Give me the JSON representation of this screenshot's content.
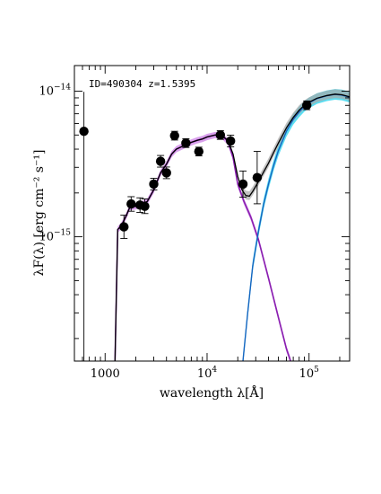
{
  "chart_data": {
    "type": "scatter",
    "annotation": "ID=490304  z=1.5395",
    "xlabel": "wavelength λ[Å]",
    "ylabel": "λF(λ) [erg cm⁻² s⁻¹]",
    "xscale": "log",
    "yscale": "log",
    "xlim": [
      500,
      250000
    ],
    "ylim": [
      1.4e-16,
      1.5e-14
    ],
    "x_ticks": [
      {
        "value": 1000,
        "label": "1000"
      },
      {
        "value": 10000,
        "base": "10",
        "exp": "4"
      },
      {
        "value": 100000,
        "base": "10",
        "exp": "5"
      }
    ],
    "y_ticks": [
      {
        "value": 1e-15,
        "base": "10",
        "exp": "−15"
      },
      {
        "value": 1e-14,
        "base": "10",
        "exp": "−14"
      }
    ],
    "grid": false,
    "colors": {
      "total_model": "#000000",
      "galaxy_model": "#8a1fb0",
      "galaxy_band": "#c060e0",
      "agn_model": "#1565c0",
      "agn_band": "#40d8f0",
      "total_band": "#a8a8a8"
    },
    "photometry": [
      {
        "x": 620,
        "y": 5.3e-15,
        "err_lo": 1.4e-16,
        "err_hi": 9.9e-15
      },
      {
        "x": 1530,
        "y": 1.17e-15,
        "err": 0.08
      },
      {
        "x": 1800,
        "y": 1.68e-15,
        "err": 0.05
      },
      {
        "x": 2200,
        "y": 1.65e-15,
        "err": 0.05
      },
      {
        "x": 2450,
        "y": 1.62e-15,
        "err": 0.05
      },
      {
        "x": 3000,
        "y": 2.3e-15,
        "err": 0.04
      },
      {
        "x": 3500,
        "y": 3.3e-15,
        "err": 0.04
      },
      {
        "x": 4000,
        "y": 2.75e-15,
        "err": 0.04
      },
      {
        "x": 4800,
        "y": 4.95e-15,
        "err": 0.03
      },
      {
        "x": 6200,
        "y": 4.4e-15,
        "err": 0.03
      },
      {
        "x": 8300,
        "y": 3.85e-15,
        "err": 0.03
      },
      {
        "x": 13500,
        "y": 5e-15,
        "err": 0.03
      },
      {
        "x": 17000,
        "y": 4.55e-15,
        "err": 0.04
      },
      {
        "x": 22500,
        "y": 2.3e-15,
        "err": 0.09
      },
      {
        "x": 31000,
        "y": 2.55e-15,
        "err": 0.18
      },
      {
        "x": 95000,
        "y": 8e-15,
        "err": 0.03
      }
    ],
    "galaxy_model": [
      [
        1250,
        1.4e-16
      ],
      [
        1330,
        1.12e-15
      ],
      [
        1450,
        1.2e-15
      ],
      [
        1600,
        1.38e-15
      ],
      [
        1750,
        1.6e-15
      ],
      [
        2000,
        1.62e-15
      ],
      [
        2300,
        1.68e-15
      ],
      [
        2600,
        1.75e-15
      ],
      [
        3000,
        2.1e-15
      ],
      [
        3500,
        2.75e-15
      ],
      [
        4000,
        3.15e-15
      ],
      [
        4500,
        3.7e-15
      ],
      [
        5000,
        4e-15
      ],
      [
        6000,
        4.25e-15
      ],
      [
        7000,
        4.45e-15
      ],
      [
        8000,
        4.6e-15
      ],
      [
        9000,
        4.7e-15
      ],
      [
        10000,
        4.85e-15
      ],
      [
        12000,
        5e-15
      ],
      [
        14000,
        4.95e-15
      ],
      [
        16000,
        4.5e-15
      ],
      [
        18000,
        3.5e-15
      ],
      [
        20000,
        2.3e-15
      ],
      [
        23000,
        1.75e-15
      ],
      [
        27000,
        1.35e-15
      ],
      [
        32000,
        9.5e-16
      ],
      [
        40000,
        5.2e-16
      ],
      [
        50000,
        2.8e-16
      ],
      [
        60000,
        1.7e-16
      ],
      [
        66000,
        1.4e-16
      ]
    ],
    "agn_model": [
      [
        22500,
        1.4e-16
      ],
      [
        25000,
        3e-16
      ],
      [
        28000,
        6.3e-16
      ],
      [
        32000,
        1.1e-15
      ],
      [
        36000,
        1.7e-15
      ],
      [
        40000,
        2.3e-15
      ],
      [
        45000,
        3.1e-15
      ],
      [
        50000,
        3.9e-15
      ],
      [
        60000,
        5.3e-15
      ],
      [
        70000,
        6.4e-15
      ],
      [
        80000,
        7.2e-15
      ],
      [
        90000,
        7.85e-15
      ],
      [
        100000,
        8.3e-15
      ],
      [
        120000,
        8.9e-15
      ],
      [
        150000,
        9.3e-15
      ],
      [
        180000,
        9.5e-15
      ],
      [
        210000,
        9.4e-15
      ],
      [
        250000,
        9.1e-15
      ]
    ],
    "total_model": [
      [
        1250,
        1.4e-16
      ],
      [
        1330,
        1.12e-15
      ],
      [
        1450,
        1.2e-15
      ],
      [
        1600,
        1.38e-15
      ],
      [
        1750,
        1.6e-15
      ],
      [
        2000,
        1.62e-15
      ],
      [
        2300,
        1.68e-15
      ],
      [
        2600,
        1.75e-15
      ],
      [
        3000,
        2.1e-15
      ],
      [
        3500,
        2.75e-15
      ],
      [
        4000,
        3.15e-15
      ],
      [
        4500,
        3.7e-15
      ],
      [
        5000,
        4e-15
      ],
      [
        6000,
        4.25e-15
      ],
      [
        7000,
        4.45e-15
      ],
      [
        8000,
        4.6e-15
      ],
      [
        9000,
        4.7e-15
      ],
      [
        10000,
        4.85e-15
      ],
      [
        12000,
        5e-15
      ],
      [
        14000,
        4.95e-15
      ],
      [
        16000,
        4.6e-15
      ],
      [
        18000,
        3.7e-15
      ],
      [
        20000,
        2.6e-15
      ],
      [
        22000,
        2.1e-15
      ],
      [
        24000,
        1.92e-15
      ],
      [
        26000,
        1.9e-15
      ],
      [
        28000,
        2.05e-15
      ],
      [
        32000,
        2.4e-15
      ],
      [
        36000,
        2.8e-15
      ],
      [
        40000,
        3.2e-15
      ],
      [
        45000,
        3.8e-15
      ],
      [
        50000,
        4.4e-15
      ],
      [
        60000,
        5.6e-15
      ],
      [
        70000,
        6.6e-15
      ],
      [
        80000,
        7.4e-15
      ],
      [
        90000,
        8e-15
      ],
      [
        100000,
        8.4e-15
      ],
      [
        120000,
        8.95e-15
      ],
      [
        150000,
        9.35e-15
      ],
      [
        180000,
        9.55e-15
      ],
      [
        210000,
        9.45e-15
      ],
      [
        250000,
        9.15e-15
      ]
    ]
  }
}
